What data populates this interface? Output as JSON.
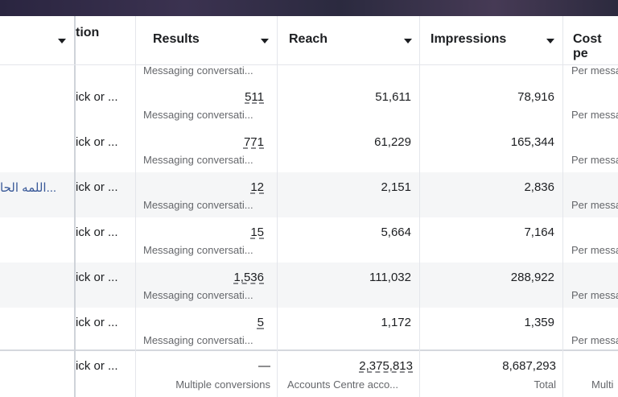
{
  "columns": {
    "name": "",
    "attribution": "tion",
    "results": "Results",
    "reach": "Reach",
    "impressions": "Impressions",
    "cost": "Cost pe"
  },
  "top_partial": {
    "results_sub": "Messaging conversati...",
    "cost_sub": "Per messa"
  },
  "rows": [
    {
      "name": "",
      "attribution": "ick or ...",
      "results": "511",
      "results_sub": "Messaging conversati...",
      "reach": "51,611",
      "impressions": "78,916",
      "cost_sub": "Per messa"
    },
    {
      "name": "",
      "attribution": "ick or ...",
      "results": "771",
      "results_sub": "Messaging conversati...",
      "reach": "61,229",
      "impressions": "165,344",
      "cost_sub": "Per messa"
    },
    {
      "name": "...اللمه الحا",
      "attribution": "ick or ...",
      "results": "12",
      "results_sub": "Messaging conversati...",
      "reach": "2,151",
      "impressions": "2,836",
      "cost_sub": "Per messa"
    },
    {
      "name": "",
      "attribution": "ick or ...",
      "results": "15",
      "results_sub": "Messaging conversati...",
      "reach": "5,664",
      "impressions": "7,164",
      "cost_sub": "Per messa"
    },
    {
      "name": "",
      "attribution": "ick or ...",
      "results": "1,536",
      "results_sub": "Messaging conversati...",
      "reach": "111,032",
      "impressions": "288,922",
      "cost_sub": "Per messa"
    },
    {
      "name": "",
      "attribution": "ick or ...",
      "results": "5",
      "results_sub": "Messaging conversati...",
      "reach": "1,172",
      "impressions": "1,359",
      "cost_sub": "Per messa"
    }
  ],
  "total": {
    "attribution": "ick or ...",
    "results": "—",
    "results_sub": "Multiple conversions",
    "reach": "2,375,813",
    "reach_sub": "Accounts Centre acco...",
    "impressions": "8,687,293",
    "impressions_sub": "Total",
    "cost_sub": "Multi"
  }
}
